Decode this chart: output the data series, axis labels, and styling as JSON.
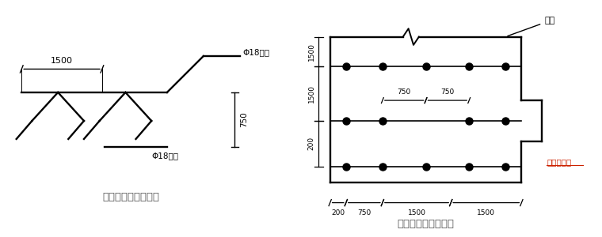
{
  "bg_color": "#ffffff",
  "line_color": "#000000",
  "text_color": "#000000",
  "dim_color": "#000000",
  "title1": "马凳加工形状示意图",
  "title2": "马凳平面布置示意图",
  "label_top_rebar": "Φ18钢筋",
  "label_bot_rebar": "Φ18钢筋",
  "label_750_vert": "750",
  "label_1500": "1500",
  "label_support": "支点",
  "label_foundation": "基础外边线",
  "label_h200": "200",
  "label_h750": "750",
  "label_h1500a": "1500",
  "label_h1500b": "1500",
  "label_mid750a": "750",
  "label_mid750b": "750",
  "label_v1500a": "1500",
  "label_v1500b": "1500",
  "label_v200": "200"
}
